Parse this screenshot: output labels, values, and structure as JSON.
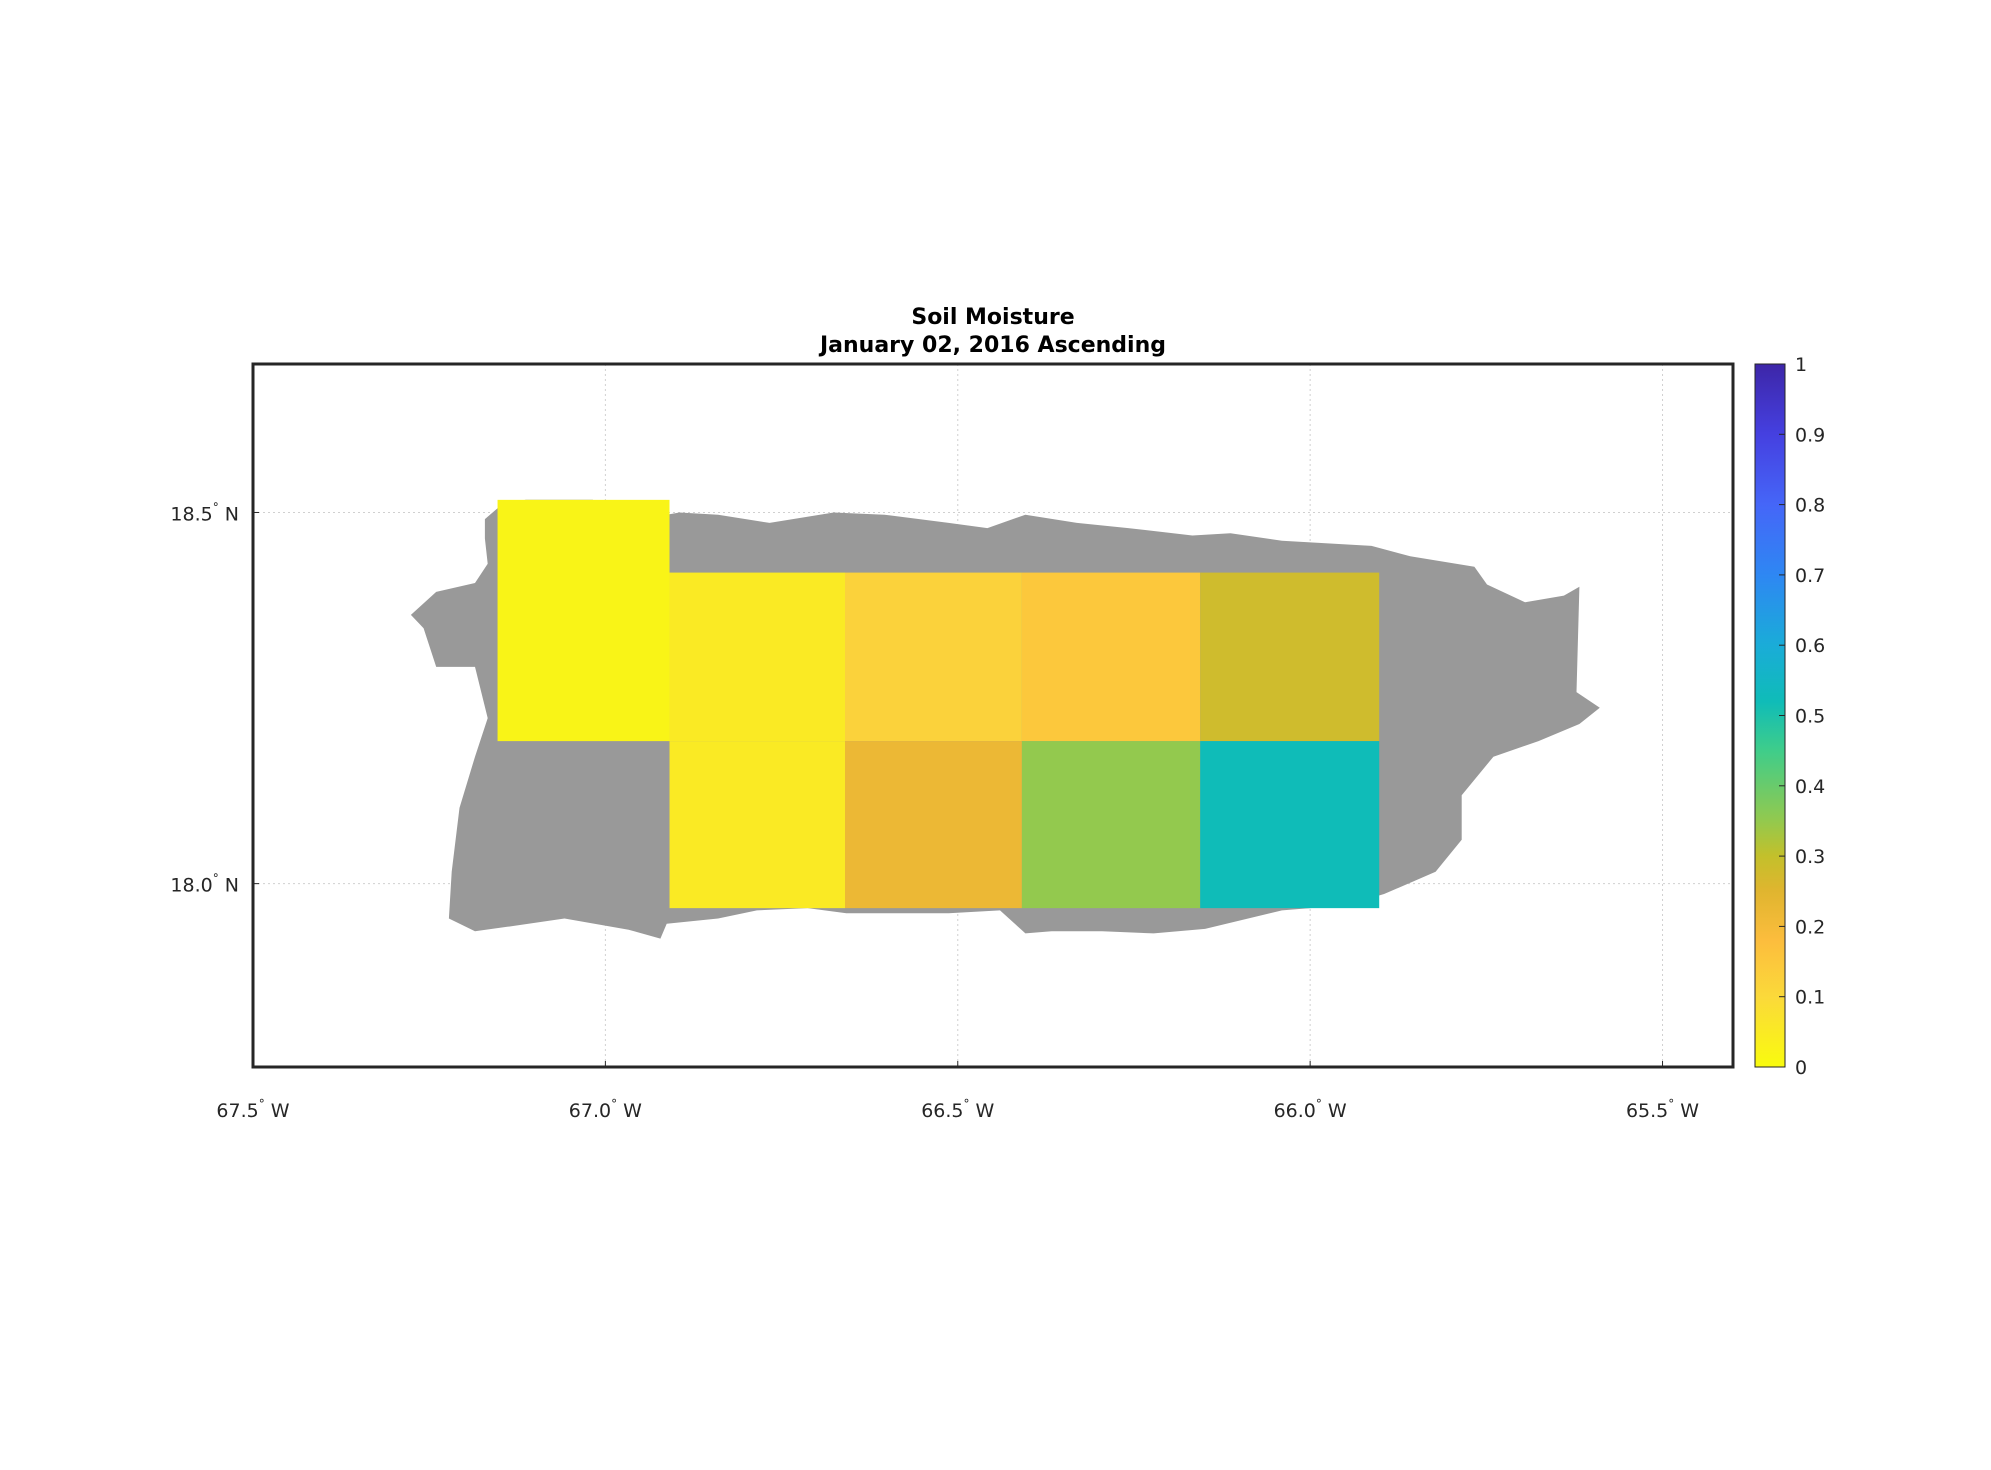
{
  "chart_data": {
    "type": "heatmap",
    "title": "Soil Moisture",
    "subtitle": "January 02, 2016 Ascending",
    "xlim": [
      -67.5,
      -65.4
    ],
    "ylim": [
      17.753,
      18.7
    ],
    "grid": true,
    "x_ticks": [
      {
        "value": -67.5,
        "label": "67.5",
        "hemisphere": "W"
      },
      {
        "value": -67.0,
        "label": "67.0",
        "hemisphere": "W"
      },
      {
        "value": -66.5,
        "label": "66.5",
        "hemisphere": "W"
      },
      {
        "value": -66.0,
        "label": "66.0",
        "hemisphere": "W"
      },
      {
        "value": -65.5,
        "label": "65.5",
        "hemisphere": "W"
      }
    ],
    "y_ticks": [
      {
        "value": 18.5,
        "label": "18.5",
        "hemisphere": "N"
      },
      {
        "value": 18.0,
        "label": "18.0",
        "hemisphere": "N"
      }
    ],
    "degree_symbol": "°",
    "land_color": "#999999",
    "land_outline_lonlat": [
      [
        -67.171,
        18.491
      ],
      [
        -67.149,
        18.509
      ],
      [
        -67.113,
        18.517
      ],
      [
        -67.018,
        18.517
      ],
      [
        -66.985,
        18.5
      ],
      [
        -66.913,
        18.497
      ],
      [
        -66.895,
        18.5
      ],
      [
        -66.84,
        18.497
      ],
      [
        -66.767,
        18.486
      ],
      [
        -66.676,
        18.5
      ],
      [
        -66.604,
        18.497
      ],
      [
        -66.513,
        18.486
      ],
      [
        -66.458,
        18.479
      ],
      [
        -66.404,
        18.497
      ],
      [
        -66.331,
        18.486
      ],
      [
        -66.258,
        18.479
      ],
      [
        -66.167,
        18.469
      ],
      [
        -66.113,
        18.472
      ],
      [
        -66.04,
        18.462
      ],
      [
        -65.913,
        18.455
      ],
      [
        -65.858,
        18.441
      ],
      [
        -65.767,
        18.427
      ],
      [
        -65.749,
        18.403
      ],
      [
        -65.695,
        18.379
      ],
      [
        -65.64,
        18.388
      ],
      [
        -65.618,
        18.4
      ],
      [
        -65.622,
        18.258
      ],
      [
        -65.589,
        18.237
      ],
      [
        -65.618,
        18.215
      ],
      [
        -65.676,
        18.192
      ],
      [
        -65.74,
        18.171
      ],
      [
        -65.785,
        18.119
      ],
      [
        -65.785,
        18.059
      ],
      [
        -65.822,
        18.016
      ],
      [
        -65.895,
        17.986
      ],
      [
        -65.949,
        17.971
      ],
      [
        -66.04,
        17.964
      ],
      [
        -66.149,
        17.939
      ],
      [
        -66.222,
        17.933
      ],
      [
        -66.295,
        17.936
      ],
      [
        -66.367,
        17.936
      ],
      [
        -66.404,
        17.933
      ],
      [
        -66.44,
        17.964
      ],
      [
        -66.513,
        17.96
      ],
      [
        -66.585,
        17.96
      ],
      [
        -66.658,
        17.96
      ],
      [
        -66.713,
        17.967
      ],
      [
        -66.785,
        17.964
      ],
      [
        -66.84,
        17.953
      ],
      [
        -66.913,
        17.946
      ],
      [
        -66.922,
        17.926
      ],
      [
        -66.967,
        17.938
      ],
      [
        -67.058,
        17.953
      ],
      [
        -67.131,
        17.943
      ],
      [
        -67.185,
        17.936
      ],
      [
        -67.222,
        17.953
      ],
      [
        -67.218,
        18.016
      ],
      [
        -67.207,
        18.102
      ],
      [
        -67.185,
        18.171
      ],
      [
        -67.167,
        18.223
      ],
      [
        -67.185,
        18.292
      ],
      [
        -67.24,
        18.292
      ],
      [
        -67.258,
        18.344
      ],
      [
        -67.276,
        18.362
      ],
      [
        -67.24,
        18.393
      ],
      [
        -67.185,
        18.405
      ],
      [
        -67.167,
        18.431
      ],
      [
        -67.171,
        18.465
      ]
    ],
    "cells": [
      {
        "lon": [
          -67.153,
          -66.909
        ],
        "lat": [
          18.192,
          18.517
        ],
        "value": 0.02
      },
      {
        "lon": [
          -66.909,
          -66.66
        ],
        "lat": [
          18.192,
          18.419
        ],
        "value": 0.05
      },
      {
        "lon": [
          -66.909,
          -66.66
        ],
        "lat": [
          17.967,
          18.192
        ],
        "value": 0.05
      },
      {
        "lon": [
          -66.66,
          -66.409
        ],
        "lat": [
          18.192,
          18.419
        ],
        "value": 0.12
      },
      {
        "lon": [
          -66.66,
          -66.409
        ],
        "lat": [
          17.967,
          18.192
        ],
        "value": 0.22
      },
      {
        "lon": [
          -66.409,
          -66.156
        ],
        "lat": [
          18.192,
          18.419
        ],
        "value": 0.15
      },
      {
        "lon": [
          -66.409,
          -66.156
        ],
        "lat": [
          17.967,
          18.192
        ],
        "value": 0.35
      },
      {
        "lon": [
          -66.156,
          -65.902
        ],
        "lat": [
          18.192,
          18.419
        ],
        "value": 0.28
      },
      {
        "lon": [
          -66.156,
          -65.902
        ],
        "lat": [
          17.967,
          18.192
        ],
        "value": 0.52
      }
    ],
    "colorbar": {
      "range": [
        0,
        1
      ],
      "ticks": [
        "0",
        "0.1",
        "0.2",
        "0.3",
        "0.4",
        "0.5",
        "0.6",
        "0.7",
        "0.8",
        "0.9",
        "1"
      ],
      "colormap_stops": [
        [
          0.0,
          "#f9fb0e"
        ],
        [
          0.1,
          "#fbd93a"
        ],
        [
          0.18,
          "#fcbd3d"
        ],
        [
          0.25,
          "#e0b52f"
        ],
        [
          0.3,
          "#c3c02b"
        ],
        [
          0.35,
          "#93c94e"
        ],
        [
          0.45,
          "#3fcd8a"
        ],
        [
          0.52,
          "#0fbcb8"
        ],
        [
          0.6,
          "#1aacd8"
        ],
        [
          0.7,
          "#2e87f3"
        ],
        [
          0.8,
          "#4566f8"
        ],
        [
          0.9,
          "#4540e0"
        ],
        [
          1.0,
          "#3d26a8"
        ]
      ]
    }
  }
}
